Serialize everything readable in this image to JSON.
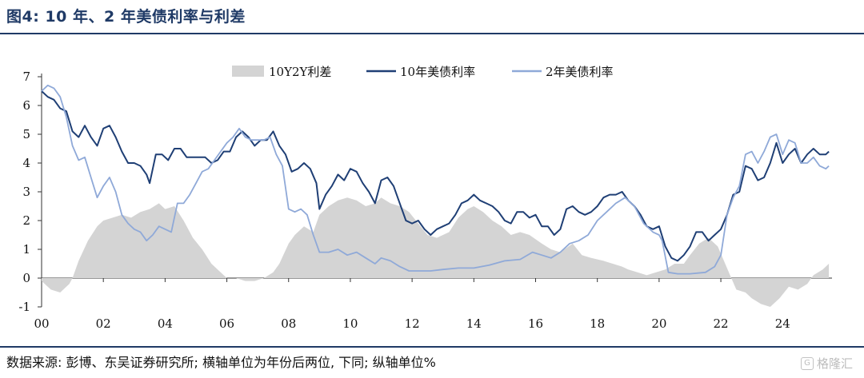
{
  "figure": {
    "title": "图4: 10 年、2 年美债利率与利差",
    "source_note": "数据来源: 彭博、东吴证券研究所; 横轴单位为年份后两位, 下同; 纵轴单位%",
    "watermark": "格隆汇",
    "watermark_icon": "G"
  },
  "colors": {
    "title": "#1f3a66",
    "spread": "#d4d4d4",
    "y10": "#1f3f75",
    "y2": "#8fa9d8",
    "rule": "#1f3a66"
  },
  "chart_data": {
    "type": "line",
    "xlabel": "",
    "ylabel": "",
    "x_ticks": [
      "00",
      "02",
      "04",
      "06",
      "08",
      "10",
      "12",
      "14",
      "16",
      "18",
      "20",
      "22",
      "24"
    ],
    "y_ticks": [
      "7",
      "6",
      "5",
      "4",
      "3",
      "2",
      "1",
      "0",
      "-1"
    ],
    "xlim": [
      2000.0,
      2025.6
    ],
    "ylim": [
      -1,
      7
    ],
    "grid": false,
    "legend_position": "top",
    "series": [
      {
        "name": "10Y2Y利差",
        "kind": "area",
        "color": "#d4d4d4",
        "x": [
          2000.0,
          2000.3,
          2000.6,
          2000.9,
          2001.0,
          2001.2,
          2001.5,
          2001.8,
          2002.0,
          2002.3,
          2002.6,
          2002.9,
          2003.2,
          2003.5,
          2003.8,
          2004.0,
          2004.3,
          2004.6,
          2004.9,
          2005.2,
          2005.5,
          2005.8,
          2006.0,
          2006.3,
          2006.6,
          2006.9,
          2007.2,
          2007.5,
          2007.7,
          2008.0,
          2008.2,
          2008.5,
          2008.8,
          2009.0,
          2009.3,
          2009.6,
          2009.9,
          2010.2,
          2010.5,
          2010.8,
          2011.0,
          2011.3,
          2011.6,
          2011.9,
          2012.2,
          2012.5,
          2012.8,
          2013.2,
          2013.5,
          2013.8,
          2014.0,
          2014.3,
          2014.6,
          2014.9,
          2015.2,
          2015.5,
          2015.8,
          2016.2,
          2016.5,
          2016.8,
          2017.2,
          2017.5,
          2017.8,
          2018.2,
          2018.5,
          2018.8,
          2019.0,
          2019.3,
          2019.6,
          2019.9,
          2020.2,
          2020.5,
          2020.8,
          2021.0,
          2021.3,
          2021.6,
          2021.9,
          2022.1,
          2022.3,
          2022.5,
          2022.8,
          2023.0,
          2023.3,
          2023.6,
          2023.9,
          2024.2,
          2024.5,
          2024.8,
          2025.0,
          2025.3,
          2025.5
        ],
        "y": [
          -0.1,
          -0.4,
          -0.5,
          -0.2,
          0.0,
          0.6,
          1.3,
          1.8,
          2.0,
          2.1,
          2.2,
          2.1,
          2.3,
          2.4,
          2.6,
          2.4,
          2.5,
          2.0,
          1.4,
          1.0,
          0.5,
          0.2,
          0.0,
          0.0,
          -0.1,
          -0.1,
          0.0,
          0.2,
          0.5,
          1.2,
          1.5,
          1.8,
          1.6,
          2.2,
          2.5,
          2.7,
          2.8,
          2.7,
          2.5,
          2.6,
          2.8,
          2.6,
          2.5,
          2.3,
          1.9,
          1.5,
          1.4,
          1.6,
          2.1,
          2.4,
          2.5,
          2.3,
          2.0,
          1.8,
          1.5,
          1.6,
          1.5,
          1.2,
          1.0,
          0.9,
          1.2,
          0.8,
          0.7,
          0.6,
          0.5,
          0.4,
          0.3,
          0.2,
          0.1,
          0.2,
          0.3,
          0.5,
          0.5,
          0.8,
          1.2,
          1.4,
          1.1,
          0.6,
          0.1,
          -0.4,
          -0.5,
          -0.7,
          -0.9,
          -1.0,
          -0.7,
          -0.3,
          -0.4,
          -0.2,
          0.1,
          0.3,
          0.5
        ]
      },
      {
        "name": "10年美债利率",
        "kind": "line",
        "color": "#1f3f75",
        "x": [
          2000.0,
          2000.2,
          2000.4,
          2000.6,
          2000.8,
          2001.0,
          2001.2,
          2001.4,
          2001.6,
          2001.8,
          2002.0,
          2002.2,
          2002.4,
          2002.6,
          2002.8,
          2003.0,
          2003.2,
          2003.4,
          2003.5,
          2003.7,
          2003.9,
          2004.1,
          2004.3,
          2004.5,
          2004.7,
          2004.9,
          2005.1,
          2005.3,
          2005.5,
          2005.7,
          2005.9,
          2006.1,
          2006.3,
          2006.5,
          2006.7,
          2006.9,
          2007.1,
          2007.3,
          2007.5,
          2007.7,
          2007.9,
          2008.1,
          2008.3,
          2008.5,
          2008.7,
          2008.9,
          2009.0,
          2009.2,
          2009.4,
          2009.6,
          2009.8,
          2010.0,
          2010.2,
          2010.4,
          2010.6,
          2010.8,
          2011.0,
          2011.2,
          2011.4,
          2011.6,
          2011.8,
          2012.0,
          2012.2,
          2012.4,
          2012.6,
          2012.8,
          2013.0,
          2013.2,
          2013.4,
          2013.6,
          2013.8,
          2014.0,
          2014.2,
          2014.4,
          2014.6,
          2014.8,
          2015.0,
          2015.2,
          2015.4,
          2015.6,
          2015.8,
          2016.0,
          2016.2,
          2016.4,
          2016.6,
          2016.8,
          2017.0,
          2017.2,
          2017.4,
          2017.6,
          2017.8,
          2018.0,
          2018.2,
          2018.4,
          2018.6,
          2018.8,
          2019.0,
          2019.2,
          2019.4,
          2019.6,
          2019.8,
          2020.0,
          2020.2,
          2020.4,
          2020.6,
          2020.8,
          2021.0,
          2021.2,
          2021.4,
          2021.6,
          2021.8,
          2022.0,
          2022.2,
          2022.4,
          2022.6,
          2022.8,
          2023.0,
          2023.2,
          2023.4,
          2023.6,
          2023.8,
          2024.0,
          2024.2,
          2024.4,
          2024.6,
          2024.8,
          2025.0,
          2025.2,
          2025.4,
          2025.5
        ],
        "y": [
          6.5,
          6.3,
          6.2,
          5.9,
          5.8,
          5.1,
          4.9,
          5.3,
          4.9,
          4.6,
          5.2,
          5.3,
          4.9,
          4.4,
          4.0,
          4.0,
          3.9,
          3.6,
          3.3,
          4.3,
          4.3,
          4.1,
          4.5,
          4.5,
          4.2,
          4.2,
          4.2,
          4.2,
          4.0,
          4.1,
          4.4,
          4.4,
          4.9,
          5.1,
          4.9,
          4.6,
          4.8,
          4.8,
          5.1,
          4.6,
          4.3,
          3.7,
          3.8,
          4.0,
          3.8,
          3.3,
          2.4,
          2.9,
          3.2,
          3.6,
          3.4,
          3.8,
          3.7,
          3.3,
          3.0,
          2.6,
          3.4,
          3.5,
          3.2,
          2.6,
          2.0,
          1.9,
          2.0,
          1.7,
          1.5,
          1.7,
          1.8,
          1.9,
          2.2,
          2.6,
          2.7,
          2.9,
          2.7,
          2.6,
          2.5,
          2.3,
          2.0,
          1.9,
          2.3,
          2.3,
          2.1,
          2.2,
          1.8,
          1.8,
          1.5,
          1.7,
          2.4,
          2.5,
          2.3,
          2.2,
          2.3,
          2.5,
          2.8,
          2.9,
          2.9,
          3.0,
          2.7,
          2.5,
          2.2,
          1.8,
          1.7,
          1.8,
          1.1,
          0.7,
          0.6,
          0.8,
          1.1,
          1.6,
          1.6,
          1.3,
          1.5,
          1.7,
          2.2,
          2.9,
          3.0,
          3.9,
          3.8,
          3.4,
          3.5,
          4.0,
          4.7,
          4.0,
          4.3,
          4.5,
          4.0,
          4.3,
          4.5,
          4.3,
          4.3,
          4.4
        ]
      },
      {
        "name": "2年美债利率",
        "kind": "line",
        "color": "#8fa9d8",
        "x": [
          2000.0,
          2000.2,
          2000.4,
          2000.6,
          2000.8,
          2001.0,
          2001.2,
          2001.4,
          2001.6,
          2001.8,
          2002.0,
          2002.2,
          2002.4,
          2002.6,
          2002.8,
          2003.0,
          2003.2,
          2003.4,
          2003.6,
          2003.8,
          2004.0,
          2004.2,
          2004.4,
          2004.6,
          2004.8,
          2005.0,
          2005.2,
          2005.4,
          2005.6,
          2005.8,
          2006.0,
          2006.2,
          2006.4,
          2006.6,
          2006.8,
          2007.0,
          2007.2,
          2007.4,
          2007.6,
          2007.8,
          2008.0,
          2008.2,
          2008.4,
          2008.6,
          2008.8,
          2009.0,
          2009.3,
          2009.6,
          2009.9,
          2010.2,
          2010.5,
          2010.8,
          2011.0,
          2011.3,
          2011.6,
          2011.9,
          2012.2,
          2012.6,
          2013.0,
          2013.5,
          2014.0,
          2014.5,
          2015.0,
          2015.5,
          2015.9,
          2016.2,
          2016.5,
          2016.8,
          2017.1,
          2017.4,
          2017.7,
          2018.0,
          2018.3,
          2018.6,
          2018.9,
          2019.2,
          2019.5,
          2019.8,
          2020.0,
          2020.1,
          2020.3,
          2020.6,
          2021.0,
          2021.5,
          2021.8,
          2022.0,
          2022.2,
          2022.4,
          2022.6,
          2022.8,
          2023.0,
          2023.2,
          2023.4,
          2023.6,
          2023.8,
          2024.0,
          2024.2,
          2024.4,
          2024.6,
          2024.8,
          2025.0,
          2025.2,
          2025.4,
          2025.5
        ],
        "y": [
          6.5,
          6.7,
          6.6,
          6.3,
          5.6,
          4.6,
          4.1,
          4.2,
          3.5,
          2.8,
          3.2,
          3.5,
          3.0,
          2.2,
          1.9,
          1.7,
          1.6,
          1.3,
          1.5,
          1.8,
          1.7,
          1.6,
          2.6,
          2.6,
          2.9,
          3.3,
          3.7,
          3.8,
          4.1,
          4.4,
          4.7,
          4.9,
          5.2,
          4.9,
          4.8,
          4.8,
          4.8,
          4.9,
          4.3,
          3.9,
          2.4,
          2.3,
          2.4,
          2.2,
          1.5,
          0.9,
          0.9,
          1.0,
          0.8,
          0.9,
          0.7,
          0.5,
          0.7,
          0.6,
          0.4,
          0.25,
          0.25,
          0.25,
          0.3,
          0.35,
          0.35,
          0.45,
          0.6,
          0.65,
          0.9,
          0.8,
          0.7,
          0.9,
          1.2,
          1.3,
          1.5,
          2.0,
          2.3,
          2.6,
          2.8,
          2.5,
          1.9,
          1.6,
          1.5,
          1.3,
          0.2,
          0.15,
          0.15,
          0.2,
          0.4,
          0.8,
          2.2,
          2.8,
          3.2,
          4.3,
          4.4,
          4.0,
          4.4,
          4.9,
          5.0,
          4.3,
          4.8,
          4.7,
          4.0,
          4.0,
          4.2,
          3.9,
          3.8,
          3.9
        ]
      }
    ]
  }
}
